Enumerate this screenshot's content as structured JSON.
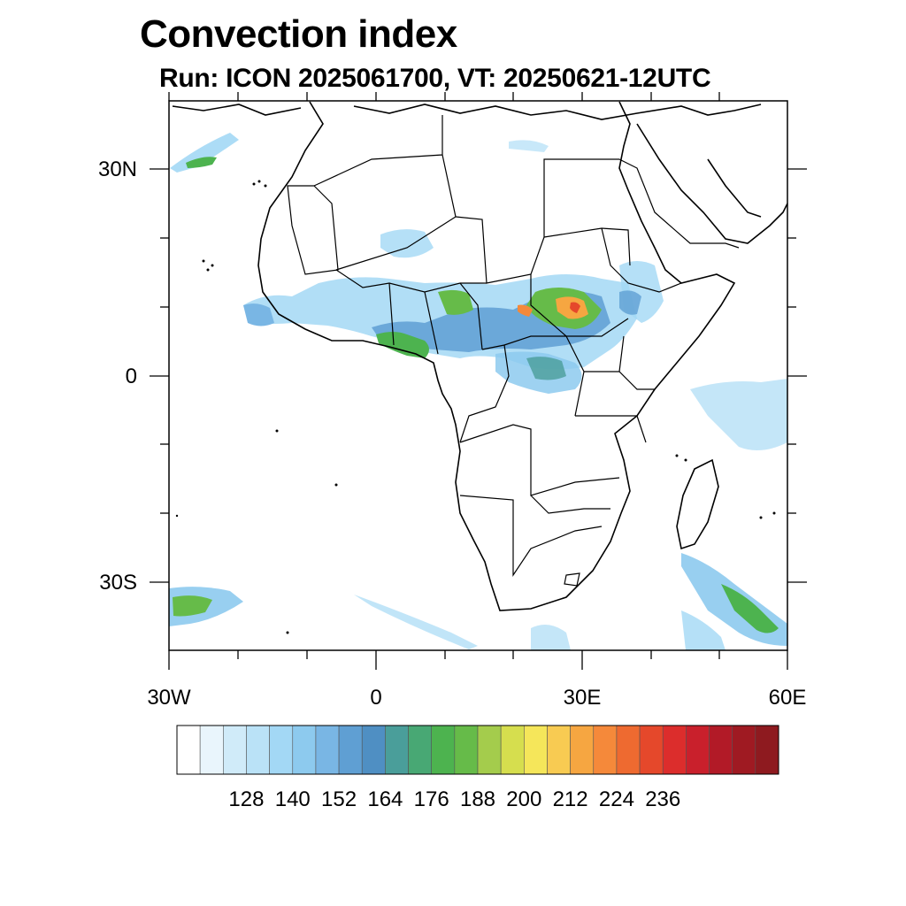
{
  "title": "Convection index",
  "subtitle": "Run: ICON 2025061700,  VT: 20250621-12UTC",
  "lat_labels": [
    "30N",
    "0",
    "30S"
  ],
  "lon_labels": [
    "30W",
    "0",
    "30E",
    "60E"
  ],
  "colorbar": {
    "labels": [
      "128",
      "140",
      "152",
      "164",
      "176",
      "188",
      "200",
      "212",
      "224",
      "236"
    ],
    "colors": [
      "#ffffff",
      "#e9f5fc",
      "#d0ebf9",
      "#bae2f7",
      "#a3d8f5",
      "#8dcaee",
      "#79b6e4",
      "#5f9fd3",
      "#4f8fc3",
      "#4a9e9a",
      "#48a874",
      "#4db34f",
      "#66bb49",
      "#a4cc4c",
      "#d6de4e",
      "#f5e65a",
      "#f8cb52",
      "#f6a641",
      "#f5893a",
      "#ee6a30",
      "#e5482b",
      "#dc2d2c",
      "#c9202c",
      "#b21a27",
      "#9f1a22",
      "#8e1a1f"
    ]
  },
  "map": {
    "lon_range": [
      -30,
      60
    ],
    "lat_range": [
      -40,
      40
    ],
    "field": "convection-index"
  }
}
